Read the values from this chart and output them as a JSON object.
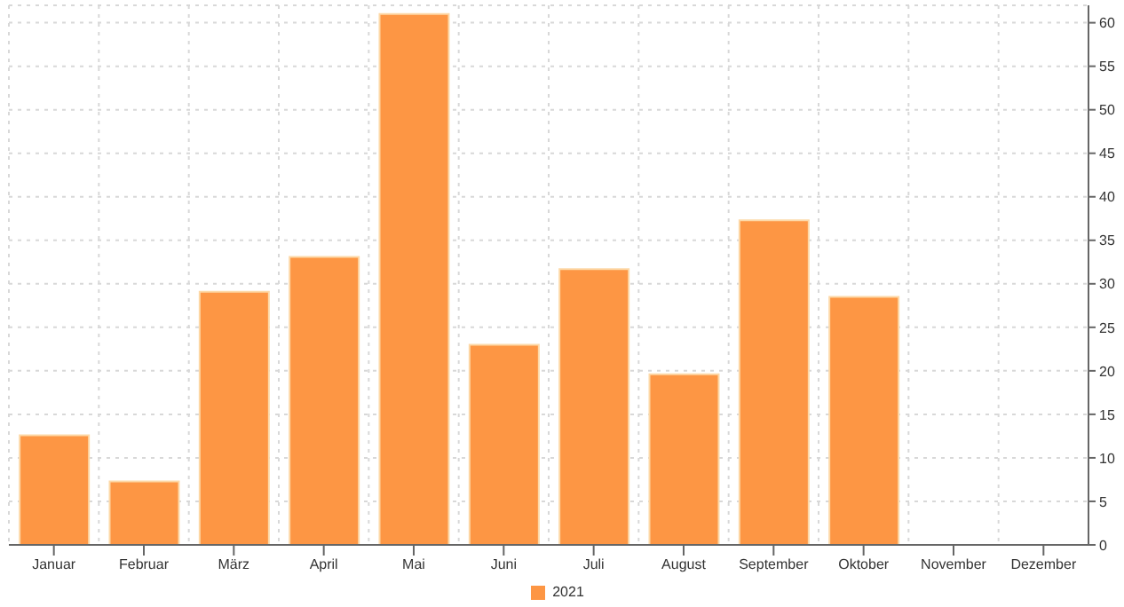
{
  "chart_data": {
    "type": "bar",
    "categories": [
      "Januar",
      "Februar",
      "März",
      "April",
      "Mai",
      "Juni",
      "Juli",
      "August",
      "September",
      "Oktober",
      "November",
      "Dezember"
    ],
    "series": [
      {
        "name": "2021",
        "color": "#fd9644",
        "values": [
          12.6,
          7.3,
          29.1,
          33.1,
          61,
          23,
          31.7,
          19.6,
          37.3,
          28.5,
          null,
          null
        ]
      }
    ],
    "ylim": [
      0,
      62
    ],
    "yticks": [
      0,
      5,
      10,
      15,
      20,
      25,
      30,
      35,
      40,
      45,
      50,
      55,
      60
    ],
    "grid": true,
    "legend": "bottom"
  }
}
